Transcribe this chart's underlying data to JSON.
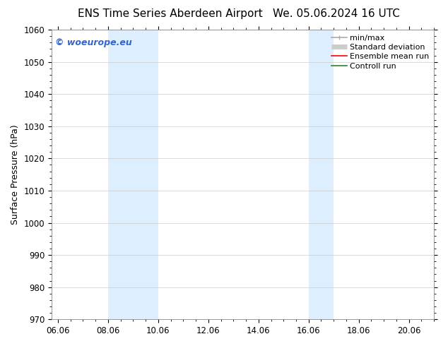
{
  "title_left": "ENS Time Series Aberdeen Airport",
  "title_right": "We. 05.06.2024 16 UTC",
  "ylabel": "Surface Pressure (hPa)",
  "ylim": [
    970,
    1060
  ],
  "yticks": [
    970,
    980,
    990,
    1000,
    1010,
    1020,
    1030,
    1040,
    1050,
    1060
  ],
  "xlim_start": 5.75,
  "xlim_end": 21.0,
  "xtick_labels": [
    "06.06",
    "08.06",
    "10.06",
    "12.06",
    "14.06",
    "16.06",
    "18.06",
    "20.06"
  ],
  "xtick_positions": [
    6.0,
    8.0,
    10.0,
    12.0,
    14.0,
    16.0,
    18.0,
    20.0
  ],
  "shaded_bands": [
    {
      "x_start": 8.0,
      "x_end": 10.0
    },
    {
      "x_start": 16.0,
      "x_end": 17.0
    }
  ],
  "shaded_color": "#ddeeff",
  "background_color": "#ffffff",
  "grid_color": "#cccccc",
  "watermark_text": "© woeurope.eu",
  "watermark_color": "#3366cc",
  "legend_entries": [
    {
      "label": "min/max",
      "color": "#aaaaaa",
      "linestyle": "-",
      "linewidth": 1.2
    },
    {
      "label": "Standard deviation",
      "color": "#cccccc",
      "linestyle": "-",
      "linewidth": 5
    },
    {
      "label": "Ensemble mean run",
      "color": "#ff0000",
      "linestyle": "-",
      "linewidth": 1.2
    },
    {
      "label": "Controll run",
      "color": "#228822",
      "linestyle": "-",
      "linewidth": 1.2
    }
  ],
  "title_fontsize": 11,
  "axis_fontsize": 9,
  "tick_fontsize": 8.5,
  "legend_fontsize": 8,
  "watermark_fontsize": 9
}
